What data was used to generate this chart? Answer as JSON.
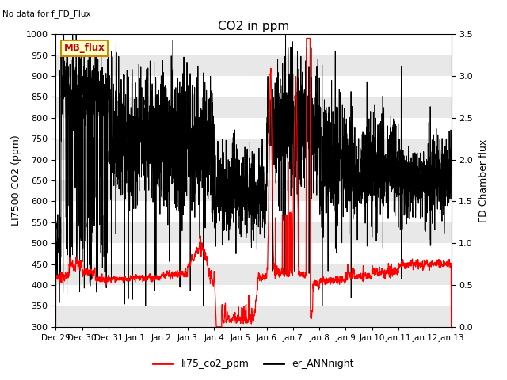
{
  "title": "CO2 in ppm",
  "ylabel_left": "LI7500 CO2 (ppm)",
  "ylabel_right": "FD Chamber flux",
  "ylim_left": [
    300,
    1000
  ],
  "ylim_right": [
    0.0,
    3.5
  ],
  "no_data_text": "No data for f_FD_Flux",
  "mb_flux_label": "MB_flux",
  "legend_labels": [
    "li75_co2_ppm",
    "er_ANNnight"
  ],
  "line_color_red": "#ff0000",
  "line_color_black": "#000000",
  "background_color": "#ffffff",
  "band_color_light": "#e8e8e8",
  "band_color_white": "#ffffff",
  "xtick_labels": [
    "Dec 29",
    "Dec 30",
    "Dec 31",
    "Jan 1",
    "Jan 2",
    "Jan 3",
    "Jan 4",
    "Jan 5",
    "Jan 6",
    "Jan 7",
    "Jan 8",
    "Jan 9",
    "Jan 10",
    "Jan 11",
    "Jan 12",
    "Jan 13"
  ],
  "n_days": 15,
  "seed": 7
}
